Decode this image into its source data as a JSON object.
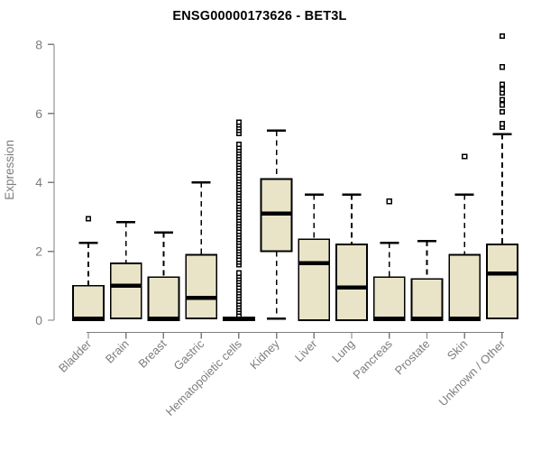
{
  "chart_data": {
    "type": "boxplot",
    "title": "ENSG00000173626 - BET3L",
    "ylabel": "Expression",
    "xlabel": "",
    "yticks": [
      0,
      2,
      4,
      6,
      8
    ],
    "ylim": [
      0,
      8.3
    ],
    "grid": false,
    "legend": "none",
    "categories": [
      "Bladder",
      "Brain",
      "Breast",
      "Gastric",
      "Hematopoietic cells",
      "Kidney",
      "Liver",
      "Lung",
      "Pancreas",
      "Prostate",
      "Skin",
      "Unknown / Other"
    ],
    "boxes": [
      {
        "label": "Bladder",
        "q1": 0,
        "median": 0.05,
        "q3": 1.0,
        "whisker_low": 0,
        "whisker_high": 2.25,
        "outliers": [
          2.95
        ]
      },
      {
        "label": "Brain",
        "q1": 0.05,
        "median": 1.0,
        "q3": 1.65,
        "whisker_low": 0.05,
        "whisker_high": 2.85,
        "outliers": []
      },
      {
        "label": "Breast",
        "q1": 0,
        "median": 0.05,
        "q3": 1.25,
        "whisker_low": 0,
        "whisker_high": 2.55,
        "outliers": []
      },
      {
        "label": "Gastric",
        "q1": 0.05,
        "median": 0.65,
        "q3": 1.9,
        "whisker_low": 0.05,
        "whisker_high": 4.0,
        "outliers": []
      },
      {
        "label": "Hematopoietic cells",
        "q1": 0,
        "median": 0.03,
        "q3": 0.08,
        "whisker_low": 0,
        "whisker_high": 0.08,
        "outliers": [],
        "dense_outlier_column": {
          "min": 0.15,
          "max": 5.75,
          "count": 70,
          "gaps": [
            [
              1.4,
              1.58
            ],
            [
              5.15,
              5.35
            ]
          ]
        }
      },
      {
        "label": "Kidney",
        "q1": 2.0,
        "median": 3.1,
        "q3": 4.1,
        "whisker_low": 0.05,
        "whisker_high": 5.5,
        "outliers": []
      },
      {
        "label": "Liver",
        "q1": 0,
        "median": 1.65,
        "q3": 2.35,
        "whisker_low": 0,
        "whisker_high": 3.65,
        "outliers": []
      },
      {
        "label": "Lung",
        "q1": 0,
        "median": 0.95,
        "q3": 2.2,
        "whisker_low": 0,
        "whisker_high": 3.65,
        "outliers": []
      },
      {
        "label": "Pancreas",
        "q1": 0,
        "median": 0.05,
        "q3": 1.25,
        "whisker_low": 0,
        "whisker_high": 2.25,
        "outliers": [
          3.45
        ]
      },
      {
        "label": "Prostate",
        "q1": 0,
        "median": 0.05,
        "q3": 1.2,
        "whisker_low": 0,
        "whisker_high": 2.3,
        "outliers": []
      },
      {
        "label": "Skin",
        "q1": 0,
        "median": 0.05,
        "q3": 1.9,
        "whisker_low": 0,
        "whisker_high": 3.65,
        "outliers": [
          4.75
        ]
      },
      {
        "label": "Unknown / Other",
        "q1": 0.05,
        "median": 1.35,
        "q3": 2.2,
        "whisker_low": 0.05,
        "whisker_high": 5.4,
        "outliers": [
          5.6,
          5.7,
          6.05,
          6.25,
          6.4,
          6.6,
          6.7,
          6.85,
          7.35,
          8.25
        ]
      }
    ],
    "colors": {
      "box_fill": "#e9e3c8",
      "box_border": "#000000",
      "median": "#000000",
      "whisker": "#000000",
      "outlier": "#000000",
      "axis": "#7d7d7d",
      "tick_label": "#7d7d7d",
      "title": "#000000",
      "background": "#ffffff"
    }
  }
}
